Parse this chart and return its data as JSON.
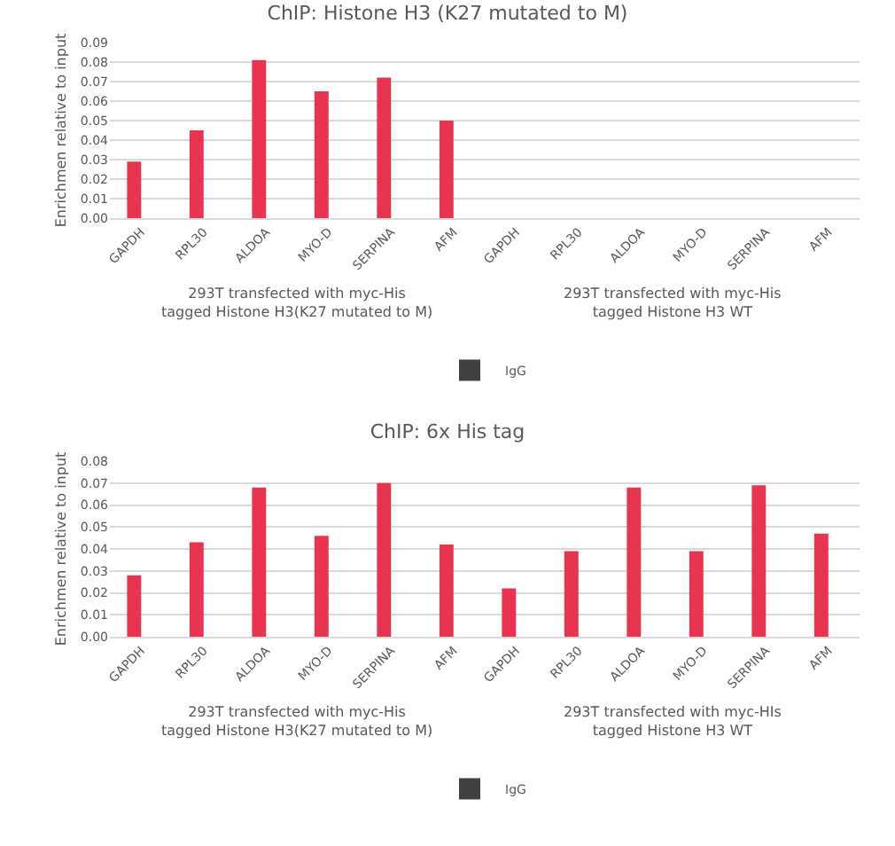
{
  "chart_data": [
    {
      "type": "bar",
      "title": "ChIP: Histone H3 (K27 mutated to M)",
      "ylabel": "Enrichmen relative to input",
      "categories": [
        "GAPDH",
        "RPL30",
        "ALDOA",
        "MYO-D",
        "SERPINA",
        "AFM",
        "GAPDH",
        "RPL30",
        "ALDOA",
        "MYO-D",
        "SERPINA",
        "AFM"
      ],
      "series": [
        {
          "color": "#e8344e",
          "values": [
            0.029,
            0.045,
            0.081,
            0.065,
            0.072,
            0.05,
            null,
            null,
            null,
            null,
            null,
            null
          ]
        },
        {
          "name": "IgG",
          "color": "#404040",
          "values": [
            0,
            0,
            0,
            0,
            0,
            0,
            0,
            0,
            0,
            0,
            0,
            0
          ]
        }
      ],
      "ylim": [
        0,
        0.09
      ],
      "yticks": [
        {
          "value": 0,
          "label": "0.00"
        },
        {
          "value": 0.01,
          "label": "0.01"
        },
        {
          "value": 0.02,
          "label": "0.02"
        },
        {
          "value": 0.03,
          "label": "0.03"
        },
        {
          "value": 0.04,
          "label": "0.04"
        },
        {
          "value": 0.05,
          "label": "0.05"
        },
        {
          "value": 0.06,
          "label": "0.06"
        },
        {
          "value": 0.07,
          "label": "0.07"
        },
        {
          "value": 0.08,
          "label": "0.08"
        },
        {
          "value": 0.09,
          "label": "0.09"
        }
      ],
      "annotations": [
        "293T transfected with myc-His\ntagged Histone H3(K27 mutated to M)",
        "293T transfected with myc-His\ntagged Histone H3 WT"
      ],
      "grid": "y",
      "legend": "bottom"
    },
    {
      "type": "bar",
      "title": "ChIP: 6x His tag",
      "ylabel": "Enrichmen relative to input",
      "categories": [
        "GAPDH",
        "RPL30",
        "ALDOA",
        "MYO-D",
        "SERPINA",
        "AFM",
        "GAPDH",
        "RPL30",
        "ALDOA",
        "MYO-D",
        "SERPINA",
        "AFM"
      ],
      "series": [
        {
          "color": "#e8344e",
          "values": [
            0.028,
            0.043,
            0.068,
            0.046,
            0.07,
            0.042,
            0.022,
            0.039,
            0.068,
            0.039,
            0.069,
            0.047
          ]
        },
        {
          "name": "IgG",
          "color": "#404040",
          "values": [
            0,
            0,
            0,
            0,
            0,
            0,
            0,
            0,
            0,
            0,
            0,
            0
          ]
        }
      ],
      "ylim": [
        0,
        0.08
      ],
      "yticks": [
        {
          "value": 0,
          "label": "0.00"
        },
        {
          "value": 0.01,
          "label": "0.01"
        },
        {
          "value": 0.02,
          "label": "0.02"
        },
        {
          "value": 0.03,
          "label": "0.03"
        },
        {
          "value": 0.04,
          "label": "0.04"
        },
        {
          "value": 0.05,
          "label": "0.05"
        },
        {
          "value": 0.06,
          "label": "0.06"
        },
        {
          "value": 0.07,
          "label": "0.07"
        },
        {
          "value": 0.08,
          "label": "0.08"
        }
      ],
      "annotations": [
        "293T transfected with myc-His\ntagged Histone H3(K27 mutated to M)",
        "293T transfected with myc-HIs\ntagged Histone H3 WT"
      ],
      "grid": "y",
      "legend": "bottom"
    }
  ]
}
